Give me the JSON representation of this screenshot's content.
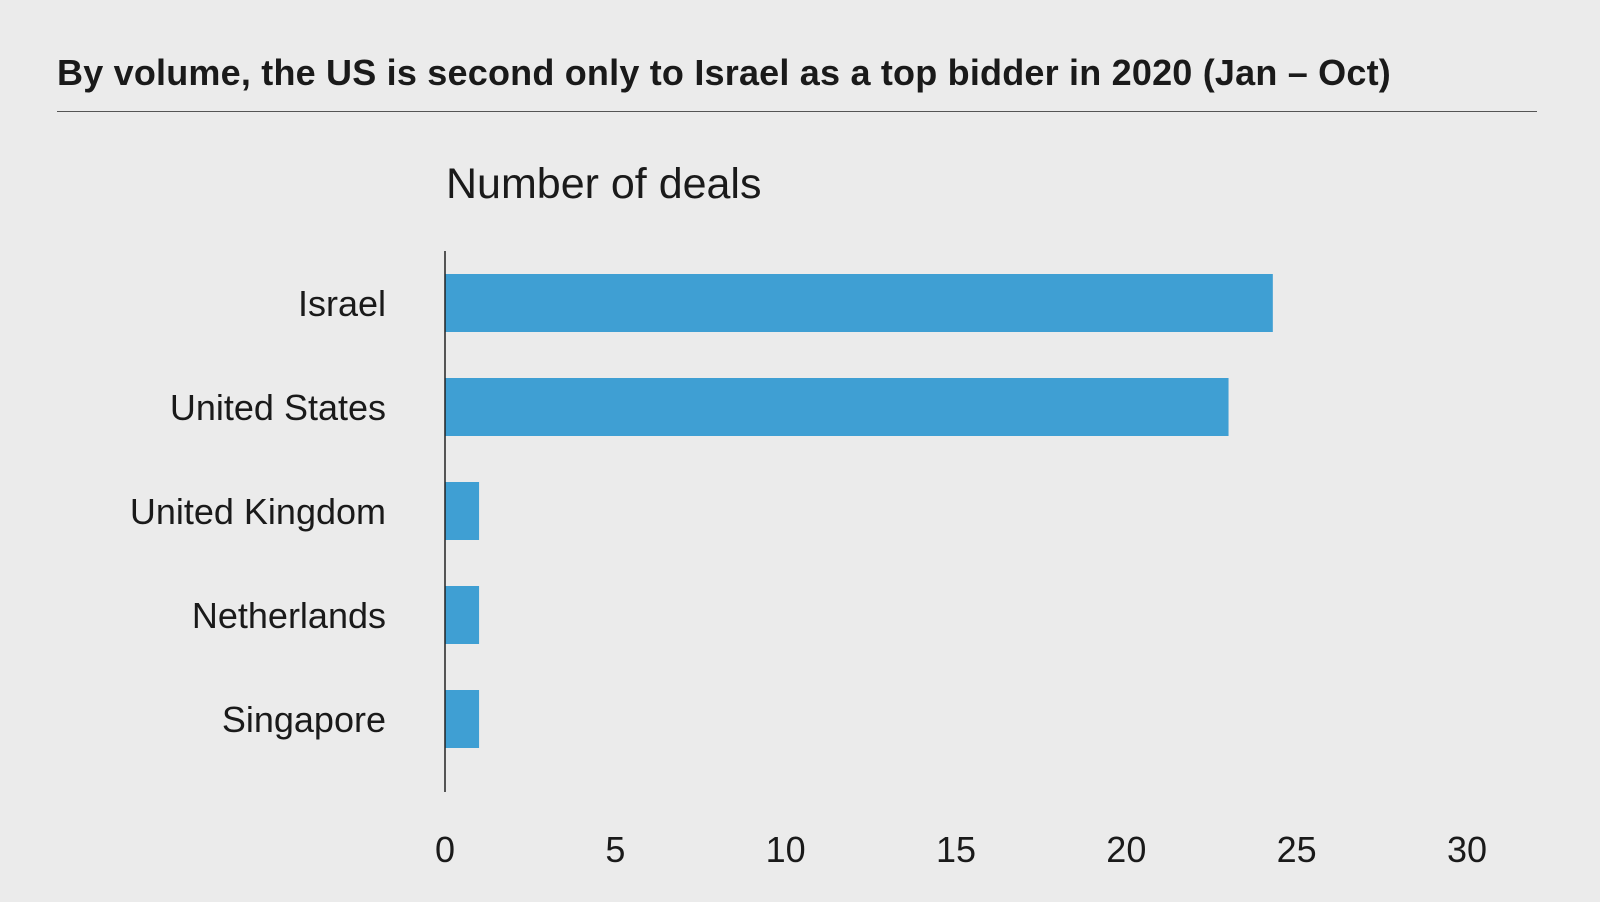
{
  "chart_data": {
    "type": "bar",
    "orientation": "horizontal",
    "title": "By volume, the US is second only to Israel as a top bidder in 2020 (Jan – Oct)",
    "subtitle": "Number of deals",
    "categories": [
      "Israel",
      "United States",
      "United Kingdom",
      "Netherlands",
      "Singapore"
    ],
    "values": [
      24.3,
      23,
      1,
      1,
      1
    ],
    "xlim": [
      0,
      30
    ],
    "xticks": [
      0,
      5,
      10,
      15,
      20,
      25,
      30
    ],
    "xlabel": "",
    "ylabel": "",
    "grid": false,
    "bar_color": "#3f9fd3"
  }
}
